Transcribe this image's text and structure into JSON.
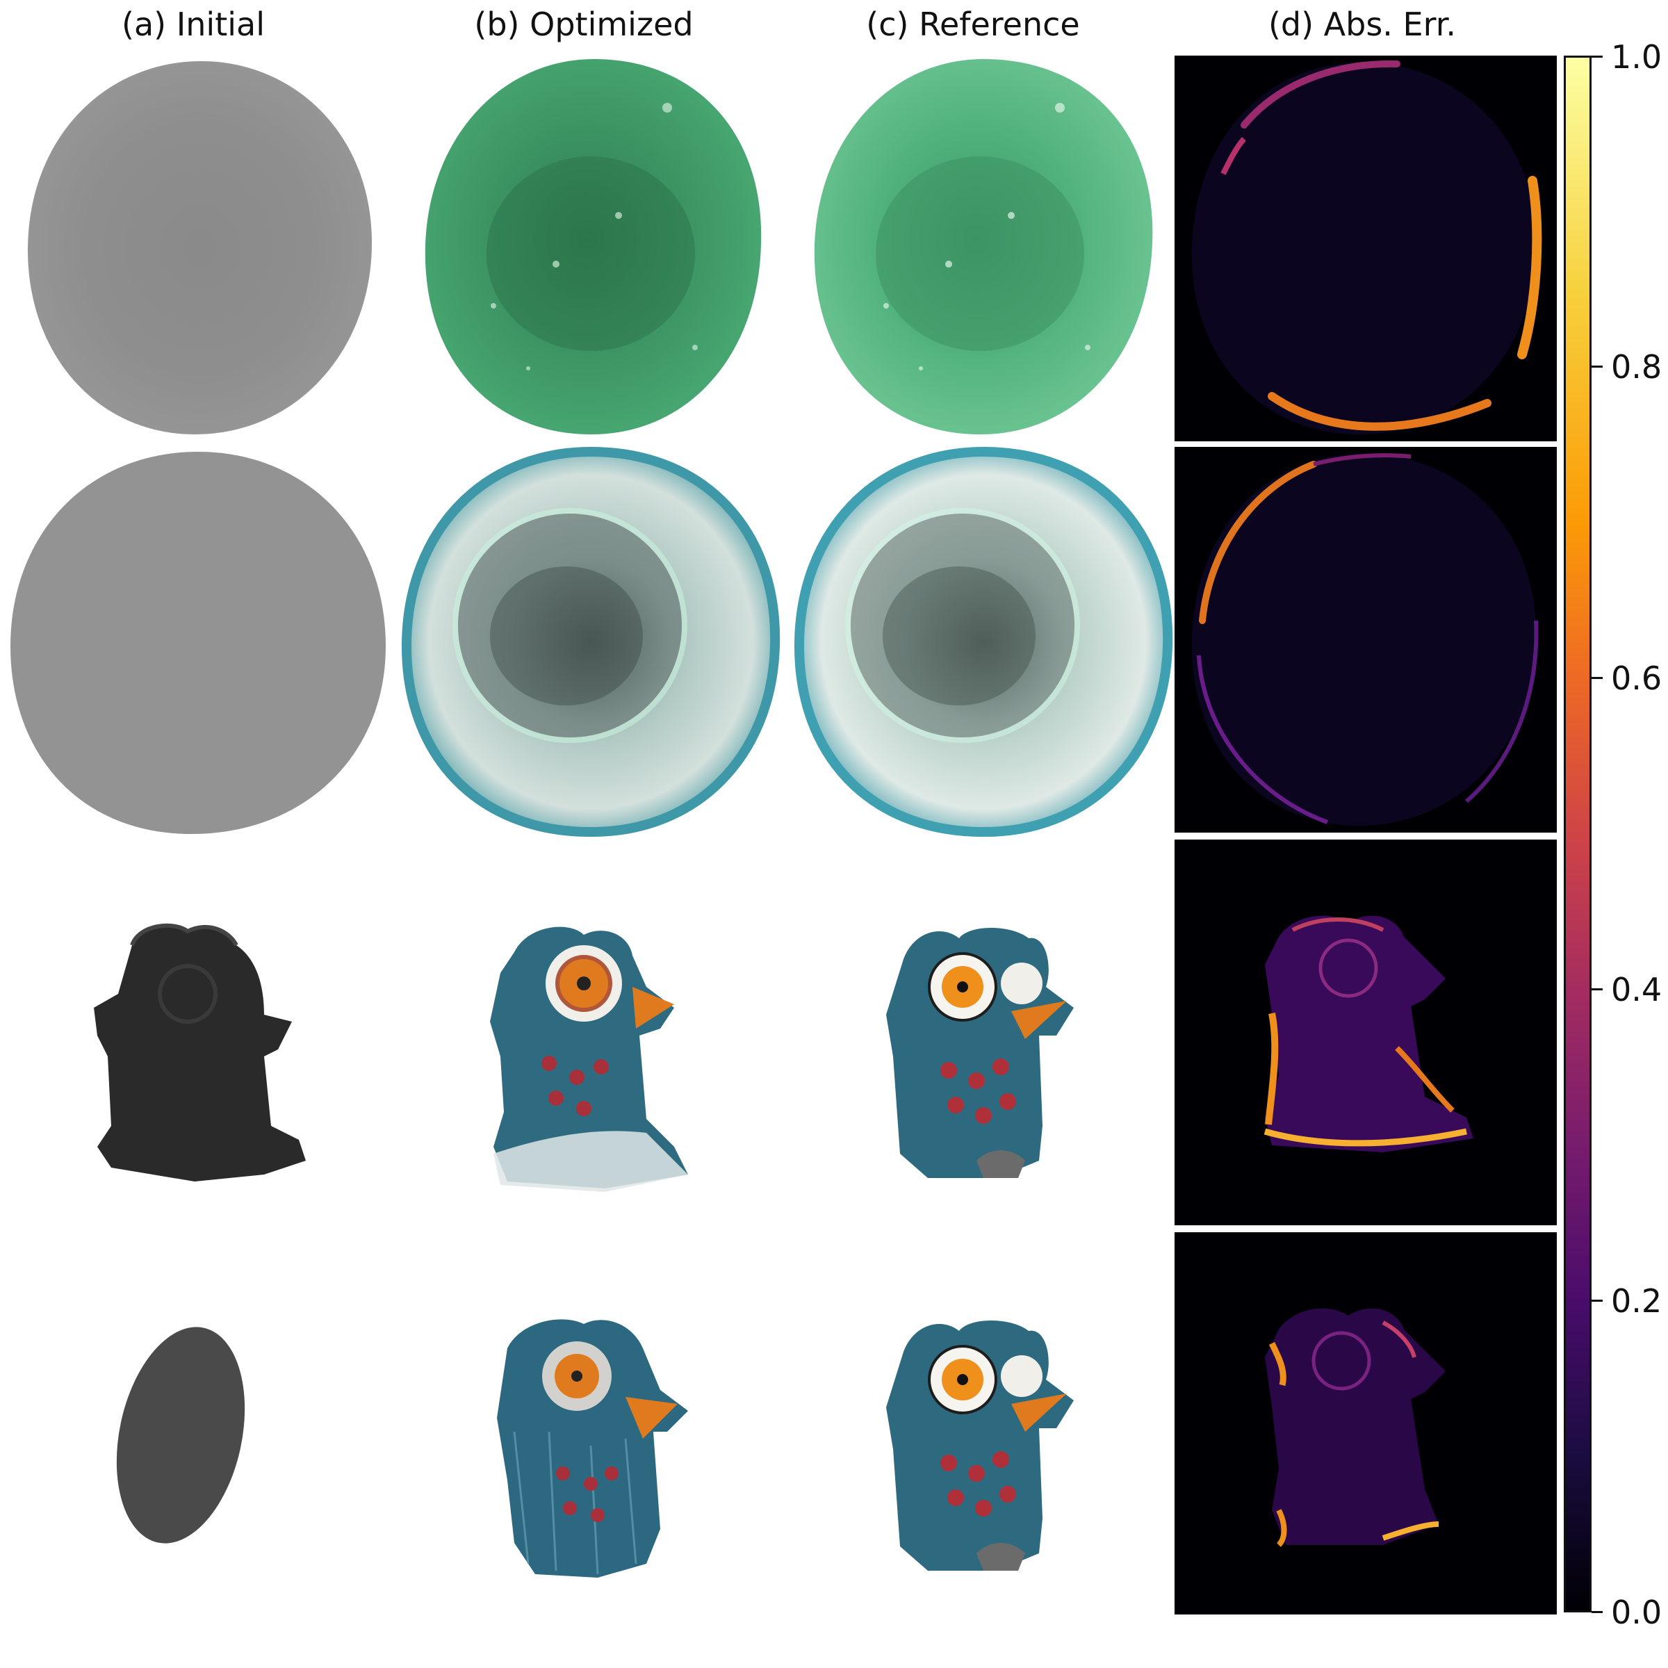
{
  "columns": [
    {
      "label": "(a) Initial"
    },
    {
      "label": "(b) Optimized"
    },
    {
      "label": "(c) Reference"
    },
    {
      "label": "(d) Abs. Err."
    }
  ],
  "colorbar": {
    "colormap": "inferno",
    "range": [
      0.0,
      1.0
    ],
    "ticks": [
      "0.0",
      "0.2",
      "0.4",
      "0.6",
      "0.8",
      "1.0"
    ]
  },
  "colors": {
    "initial_gray": "#8f8f8f",
    "green_dish": "#3d9e6a",
    "green_dish_light": "#5cc08a",
    "teal_dish": "#7fb3b0",
    "owl_blue": "#2e6a7f",
    "owl_orange": "#e07a1e",
    "error_bg": "#000004",
    "error_purple": "#6a1d8a",
    "error_orange": "#f08a1a"
  },
  "rows": [
    {
      "object": "green dish"
    },
    {
      "object": "glass dish"
    },
    {
      "object": "owl figurine"
    },
    {
      "object": "owl figurine"
    }
  ]
}
